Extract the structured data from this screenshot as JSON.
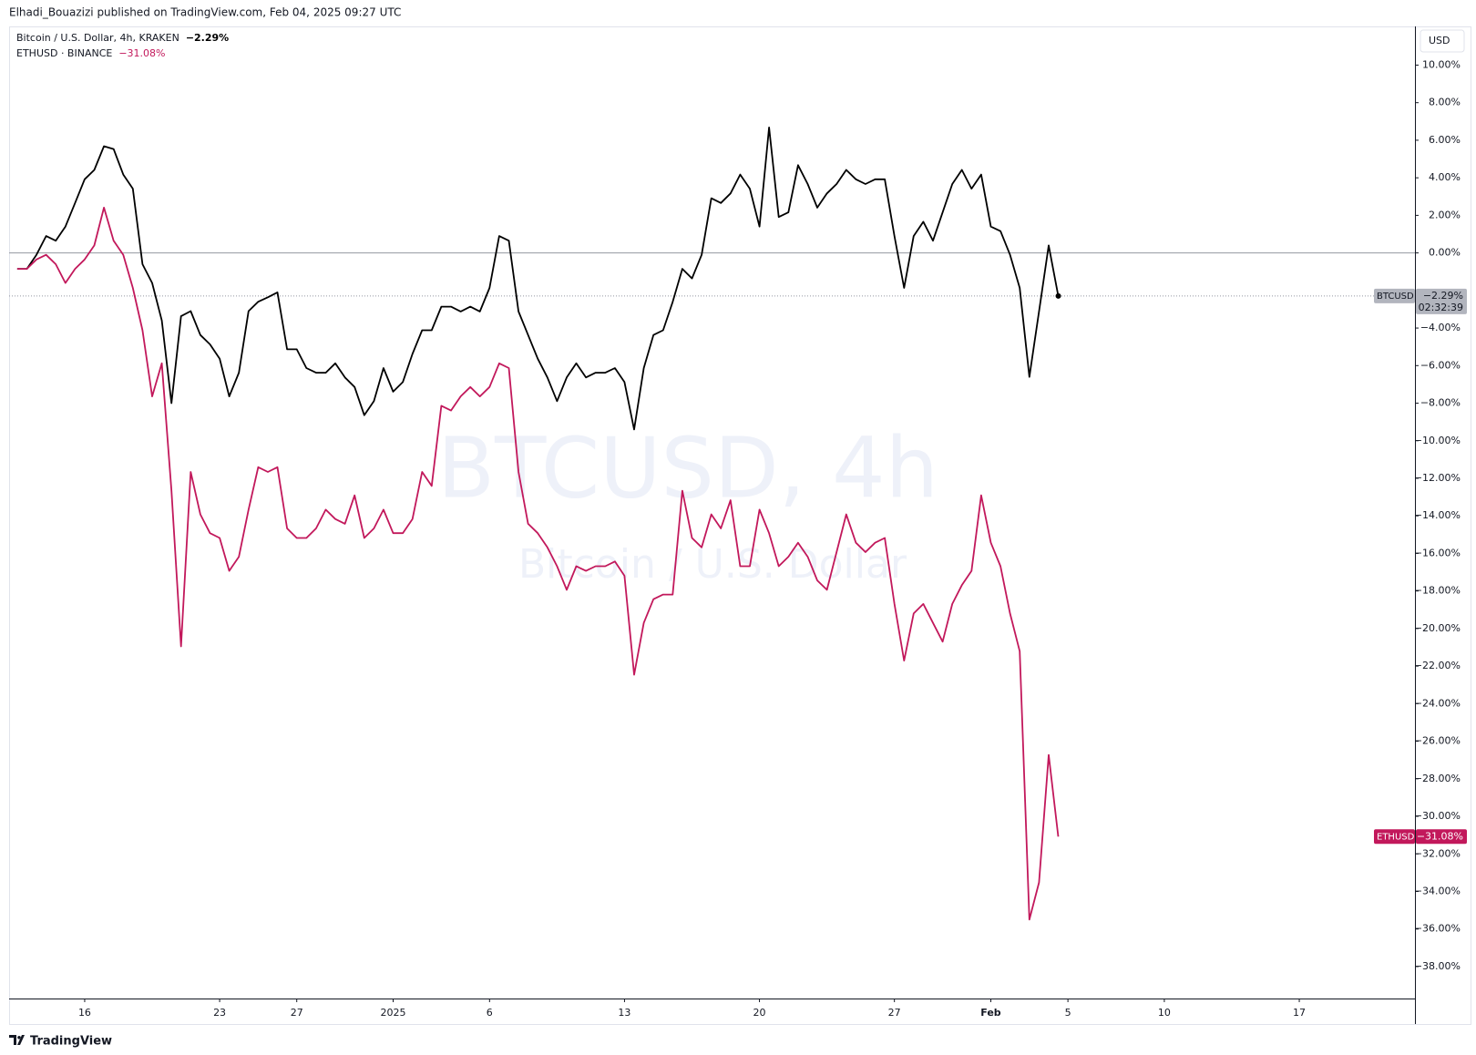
{
  "header": {
    "text": "Elhadi_Bouazizi published on TradingView.com, Feb 04, 2025 09:27 UTC"
  },
  "chart_data": {
    "type": "line",
    "watermark": "BTCUSD, 4h",
    "watermark_subtitle": "Bitcoin / U.S. Dollar",
    "currency": "USD",
    "baseline": 0,
    "x": [
      -3.5,
      -3,
      -2.5,
      -2,
      -1.5,
      -1,
      -0.5,
      0,
      0.5,
      1,
      1.5,
      2,
      2.5,
      3,
      3.5,
      4,
      4.5,
      5,
      5.5,
      6,
      6.5,
      7,
      7.5,
      8,
      8.5,
      9,
      9.5,
      10,
      10.5,
      11,
      11.5,
      12,
      12.5,
      13,
      13.5,
      14,
      14.5,
      15,
      15.5,
      16,
      16.5,
      17,
      17.5,
      18,
      18.5,
      19,
      19.5,
      20,
      20.5,
      21,
      21.5,
      22,
      22.5,
      23,
      23.5,
      24,
      24.5,
      25,
      25.5,
      26,
      26.5,
      27,
      27.5,
      28,
      28.5,
      29,
      29.5,
      30,
      30.5,
      31,
      31.5,
      32,
      32.5,
      33,
      33.5,
      34,
      34.5,
      35,
      35.5,
      36,
      36.5,
      37,
      37.5,
      38,
      38.5,
      39,
      39.5,
      40,
      40.5,
      41,
      41.5,
      42,
      42.5,
      43,
      43.5,
      44,
      44.5,
      45,
      45.5,
      46,
      46.5,
      47,
      47.5,
      48,
      48.5,
      49,
      49.5,
      50,
      50.5
    ],
    "series": [
      {
        "name": "Bitcoin / U.S. Dollar, 4h, KRAKEN",
        "symbol": "BTCUSD",
        "color": "#000000",
        "change_label": "−2.29%",
        "countdown": "02:32:39",
        "values": [
          -0.85,
          -0.85,
          -0.1,
          0.9,
          0.65,
          1.4,
          2.66,
          3.92,
          4.42,
          5.68,
          5.53,
          4.17,
          3.42,
          -0.6,
          -1.6,
          -3.6,
          -8.0,
          -3.37,
          -3.1,
          -4.37,
          -4.87,
          -5.63,
          -7.64,
          -6.38,
          -3.1,
          -2.6,
          -2.36,
          -2.1,
          -5.13,
          -5.13,
          -6.13,
          -6.38,
          -6.38,
          -5.88,
          -6.63,
          -7.14,
          -8.64,
          -7.89,
          -6.13,
          -7.39,
          -6.88,
          -5.38,
          -4.12,
          -4.12,
          -2.86,
          -2.86,
          -3.12,
          -2.86,
          -3.12,
          -1.86,
          0.9,
          0.65,
          -3.12,
          -4.37,
          -5.63,
          -6.63,
          -7.89,
          -6.63,
          -5.88,
          -6.63,
          -6.38,
          -6.38,
          -6.13,
          -6.88,
          -9.4,
          -6.13,
          -4.37,
          -4.12,
          -2.61,
          -0.85,
          -1.36,
          -0.1,
          2.91,
          2.66,
          3.17,
          4.17,
          3.42,
          1.4,
          6.68,
          1.91,
          2.16,
          4.67,
          3.67,
          2.41,
          3.17,
          3.67,
          4.42,
          3.92,
          3.67,
          3.92,
          3.92,
          0.9,
          -1.86,
          0.9,
          1.66,
          0.65,
          2.16,
          3.67,
          4.42,
          3.42,
          4.17,
          1.4,
          1.16,
          -0.1,
          -1.86,
          -6.6,
          -3.12,
          0.4,
          -2.29
        ]
      },
      {
        "name": "ETHUSD · BINANCE",
        "symbol": "ETHUSD",
        "color": "#c2185b",
        "change_label": "−31.08%",
        "values": [
          -0.85,
          -0.85,
          -0.35,
          -0.1,
          -0.6,
          -1.6,
          -0.85,
          -0.35,
          0.4,
          2.41,
          0.65,
          -0.1,
          -1.86,
          -4.12,
          -7.64,
          -5.88,
          -12.66,
          -20.95,
          -11.66,
          -13.92,
          -14.92,
          -15.18,
          -16.93,
          -16.18,
          -13.67,
          -11.41,
          -11.66,
          -11.41,
          -14.67,
          -15.18,
          -15.18,
          -14.67,
          -13.67,
          -14.17,
          -14.42,
          -12.91,
          -15.18,
          -14.67,
          -13.67,
          -14.92,
          -14.92,
          -14.17,
          -11.66,
          -12.41,
          -8.14,
          -8.39,
          -7.64,
          -7.14,
          -7.64,
          -7.14,
          -5.88,
          -6.13,
          -11.66,
          -14.42,
          -14.92,
          -15.68,
          -16.68,
          -17.94,
          -16.68,
          -16.93,
          -16.68,
          -16.68,
          -16.43,
          -17.19,
          -22.46,
          -19.7,
          -18.44,
          -18.19,
          -18.19,
          -12.66,
          -15.18,
          -15.68,
          -13.92,
          -14.67,
          -13.17,
          -16.68,
          -16.68,
          -13.67,
          -14.92,
          -16.68,
          -16.18,
          -15.43,
          -16.18,
          -17.44,
          -17.94,
          -15.93,
          -13.92,
          -15.43,
          -15.93,
          -15.43,
          -15.18,
          -18.69,
          -21.71,
          -19.2,
          -18.69,
          -19.7,
          -20.7,
          -18.69,
          -17.69,
          -16.93,
          -12.91,
          -15.43,
          -16.68,
          -19.2,
          -21.21,
          -35.5,
          -33.52,
          -26.73,
          -31.08
        ]
      }
    ],
    "xlim": [
      -3.92,
      69
    ],
    "xticks": [
      {
        "value": 0,
        "label": "16"
      },
      {
        "value": 7,
        "label": "23"
      },
      {
        "value": 11,
        "label": "27"
      },
      {
        "value": 16,
        "label": "2025"
      },
      {
        "value": 21,
        "label": "6"
      },
      {
        "value": 28,
        "label": "13"
      },
      {
        "value": 35,
        "label": "20"
      },
      {
        "value": 42,
        "label": "27"
      },
      {
        "value": 47,
        "label": "Feb"
      },
      {
        "value": 51,
        "label": "5"
      },
      {
        "value": 56,
        "label": "10"
      },
      {
        "value": 63,
        "label": "17"
      }
    ],
    "ylim": [
      -39.7,
      12.06
    ],
    "yticks": [
      {
        "value": 10,
        "label": "10.00%"
      },
      {
        "value": 8,
        "label": "8.00%"
      },
      {
        "value": 6,
        "label": "6.00%"
      },
      {
        "value": 4,
        "label": "4.00%"
      },
      {
        "value": 2,
        "label": "2.00%"
      },
      {
        "value": 0,
        "label": "0.00%"
      },
      {
        "value": -4,
        "label": "−4.00%"
      },
      {
        "value": -6,
        "label": "−6.00%"
      },
      {
        "value": -8,
        "label": "−8.00%"
      },
      {
        "value": -10,
        "label": "−10.00%"
      },
      {
        "value": -12,
        "label": "−12.00%"
      },
      {
        "value": -14,
        "label": "−14.00%"
      },
      {
        "value": -16,
        "label": "−16.00%"
      },
      {
        "value": -18,
        "label": "−18.00%"
      },
      {
        "value": -20,
        "label": "−20.00%"
      },
      {
        "value": -22,
        "label": "−22.00%"
      },
      {
        "value": -24,
        "label": "−24.00%"
      },
      {
        "value": -26,
        "label": "−26.00%"
      },
      {
        "value": -28,
        "label": "−28.00%"
      },
      {
        "value": -30,
        "label": "−30.00%"
      },
      {
        "value": -32,
        "label": "−32.00%"
      },
      {
        "value": -34,
        "label": "−34.00%"
      },
      {
        "value": -36,
        "label": "−36.00%"
      },
      {
        "value": -38,
        "label": "−38.00%"
      }
    ]
  },
  "footer": {
    "brand": "TradingView"
  }
}
